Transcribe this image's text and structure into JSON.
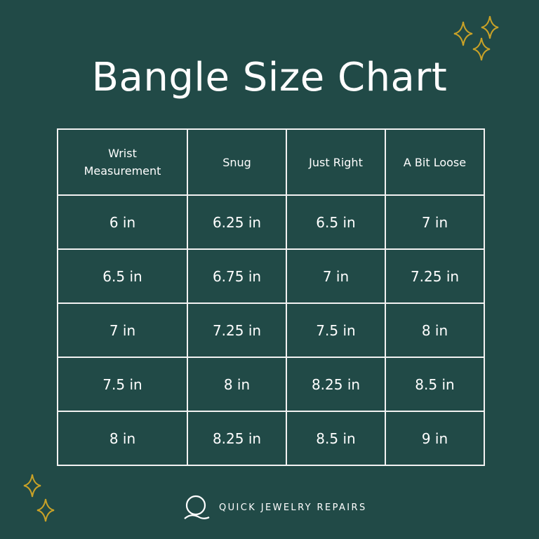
{
  "title": "Bangle Size Chart",
  "colors": {
    "background": "#214a47",
    "accent": "#c9a227",
    "text": "#ffffff"
  },
  "table": {
    "headers": [
      "Wrist\nMeasurement",
      "Snug",
      "Just Right",
      "A Bit Loose"
    ],
    "rows": [
      [
        "6 in",
        "6.25 in",
        "6.5 in",
        "7 in"
      ],
      [
        "6.5 in",
        "6.75 in",
        "7 in",
        "7.25 in"
      ],
      [
        "7 in",
        "7.25 in",
        "7.5 in",
        "8 in"
      ],
      [
        "7.5 in",
        "8 in",
        "8.25 in",
        "8.5 in"
      ],
      [
        "8 in",
        "8.25 in",
        "8.5 in",
        "9 in"
      ]
    ]
  },
  "brand": {
    "name": "QUICK JEWELRY REPAIRS",
    "logo_letter": "Q"
  },
  "icons": [
    "sparkle-icon"
  ]
}
